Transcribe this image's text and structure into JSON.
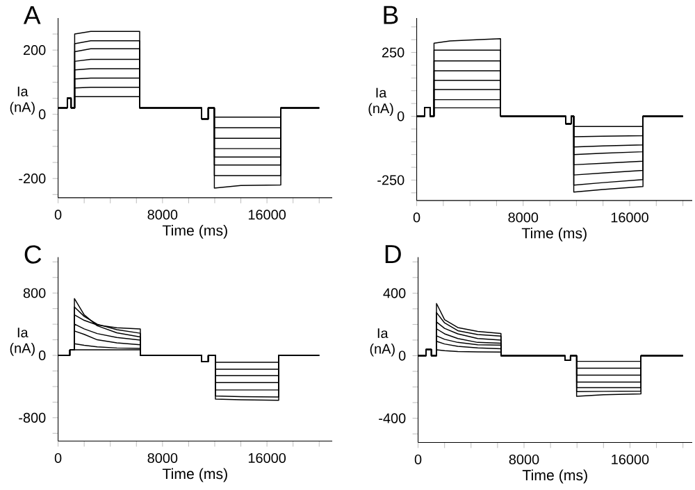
{
  "chart_data": [
    {
      "type": "line",
      "title": "A",
      "xlabel": "Time (ms)",
      "ylabel": "Ia (nA)",
      "xlim": [
        0,
        21000
      ],
      "ylim": [
        -260,
        300
      ],
      "xticks": [
        0,
        {
          "value": 2000,
          "label": null
        },
        {
          "value": 4000,
          "label": null
        },
        {
          "value": 6000,
          "label": null
        },
        8000,
        {
          "value": 10000,
          "label": null
        },
        {
          "value": 12000,
          "label": null
        },
        {
          "value": 14000,
          "label": null
        },
        16000,
        {
          "value": 18000,
          "label": null
        },
        {
          "value": 20000,
          "label": null
        }
      ],
      "yticks": [
        {
          "value": -250,
          "label": null
        },
        -200,
        {
          "value": -150,
          "label": null
        },
        {
          "value": -100,
          "label": null
        },
        {
          "value": -50,
          "label": null
        },
        0,
        {
          "value": 50,
          "label": null
        },
        {
          "value": 100,
          "label": null
        },
        {
          "value": 150,
          "label": null
        },
        200,
        {
          "value": 250,
          "label": null
        }
      ],
      "x": [
        0,
        700,
        700,
        1000,
        1000,
        1270,
        1270,
        2500,
        4500,
        6250,
        6250,
        11000,
        11000,
        11500,
        11500,
        11970,
        11970,
        14000,
        17060,
        17060,
        20000
      ],
      "series": [
        {
          "color": "#000000",
          "values": [
            20,
            20,
            50,
            50,
            20,
            20,
            250,
            258,
            258,
            258,
            20,
            20,
            -15,
            -15,
            20,
            20,
            -9,
            -9,
            -9,
            20,
            20
          ]
        },
        {
          "color": "#000000",
          "values": [
            20,
            20,
            50,
            50,
            20,
            20,
            220,
            229,
            229,
            229,
            20,
            20,
            -15,
            -15,
            20,
            20,
            -42,
            -42,
            -42,
            20,
            20
          ]
        },
        {
          "color": "#000000",
          "values": [
            20,
            20,
            50,
            50,
            20,
            20,
            195,
            204,
            204,
            204,
            20,
            20,
            -15,
            -15,
            20,
            20,
            -75,
            -75,
            -75,
            20,
            20
          ]
        },
        {
          "color": "#000000",
          "values": [
            20,
            20,
            50,
            50,
            20,
            20,
            165,
            171,
            171,
            171,
            20,
            20,
            -15,
            -15,
            20,
            20,
            -107,
            -107,
            -107,
            20,
            20
          ]
        },
        {
          "color": "#000000",
          "values": [
            20,
            20,
            50,
            50,
            20,
            20,
            138,
            142,
            142,
            142,
            20,
            20,
            -15,
            -15,
            20,
            20,
            -133,
            -133,
            -133,
            20,
            20
          ]
        },
        {
          "color": "#000000",
          "values": [
            20,
            20,
            50,
            50,
            20,
            20,
            110,
            113,
            113,
            113,
            20,
            20,
            -15,
            -15,
            20,
            20,
            -158,
            -158,
            -158,
            20,
            20
          ]
        },
        {
          "color": "#000000",
          "values": [
            20,
            20,
            50,
            50,
            20,
            20,
            82,
            84,
            84,
            84,
            20,
            20,
            -15,
            -15,
            20,
            20,
            -191,
            -191,
            -191,
            20,
            20
          ]
        },
        {
          "color": "#000000",
          "values": [
            20,
            20,
            50,
            50,
            20,
            20,
            55,
            55,
            55,
            55,
            20,
            20,
            -15,
            -15,
            20,
            20,
            -230,
            -222,
            -220,
            20,
            20
          ]
        }
      ]
    },
    {
      "type": "line",
      "title": "B",
      "xlabel": "Time (ms)",
      "ylabel": "Ia (nA)",
      "xlim": [
        0,
        20700
      ],
      "ylim": [
        -330,
        385
      ],
      "xticks": [
        0,
        {
          "value": 2000,
          "label": null
        },
        {
          "value": 4000,
          "label": null
        },
        {
          "value": 6000,
          "label": null
        },
        8000,
        {
          "value": 10000,
          "label": null
        },
        {
          "value": 12000,
          "label": null
        },
        {
          "value": 14000,
          "label": null
        },
        16000,
        {
          "value": 18000,
          "label": null
        },
        {
          "value": 20000,
          "label": null
        }
      ],
      "yticks": [
        {
          "value": -300,
          "label": null
        },
        -250,
        {
          "value": -200,
          "label": null
        },
        {
          "value": -150,
          "label": null
        },
        {
          "value": -100,
          "label": null
        },
        {
          "value": -50,
          "label": null
        },
        0,
        {
          "value": 50,
          "label": null
        },
        {
          "value": 100,
          "label": null
        },
        {
          "value": 150,
          "label": null
        },
        {
          "value": 200,
          "label": null
        },
        250,
        {
          "value": 300,
          "label": null
        },
        {
          "value": 350,
          "label": null
        }
      ],
      "x": [
        0,
        600,
        600,
        1000,
        1000,
        1300,
        1300,
        2500,
        4500,
        6300,
        6300,
        11200,
        11200,
        11600,
        11600,
        11800,
        11800,
        14000,
        17000,
        17000,
        20000
      ],
      "series": [
        {
          "color": "#000000",
          "values": [
            0,
            0,
            35,
            35,
            0,
            0,
            286,
            295,
            300,
            304,
            0,
            0,
            -30,
            -30,
            0,
            0,
            -40,
            -40,
            -40,
            0,
            0
          ]
        },
        {
          "color": "#000000",
          "values": [
            0,
            0,
            35,
            35,
            0,
            0,
            259,
            259,
            259,
            259,
            0,
            0,
            -30,
            -30,
            0,
            0,
            -80,
            -78,
            -76,
            0,
            0
          ]
        },
        {
          "color": "#000000",
          "values": [
            0,
            0,
            35,
            35,
            0,
            0,
            217,
            217,
            217,
            217,
            0,
            0,
            -30,
            -30,
            0,
            0,
            -120,
            -116,
            -112,
            0,
            0
          ]
        },
        {
          "color": "#000000",
          "values": [
            0,
            0,
            35,
            35,
            0,
            0,
            178,
            178,
            178,
            178,
            0,
            0,
            -30,
            -30,
            0,
            0,
            -150,
            -145,
            -139,
            0,
            0
          ]
        },
        {
          "color": "#000000",
          "values": [
            0,
            0,
            35,
            35,
            0,
            0,
            141,
            141,
            141,
            141,
            0,
            0,
            -30,
            -30,
            0,
            0,
            -190,
            -184,
            -176,
            0,
            0
          ]
        },
        {
          "color": "#000000",
          "values": [
            0,
            0,
            35,
            35,
            0,
            0,
            105,
            105,
            105,
            105,
            0,
            0,
            -30,
            -30,
            0,
            0,
            -230,
            -222,
            -212,
            0,
            0
          ]
        },
        {
          "color": "#000000",
          "values": [
            0,
            0,
            35,
            35,
            0,
            0,
            65,
            65,
            65,
            65,
            0,
            0,
            -30,
            -30,
            0,
            0,
            -270,
            -260,
            -248,
            0,
            0
          ]
        },
        {
          "color": "#000000",
          "values": [
            0,
            0,
            35,
            35,
            0,
            0,
            33,
            33,
            33,
            33,
            0,
            0,
            -30,
            -30,
            0,
            0,
            -297,
            -287,
            -275,
            0,
            0
          ]
        }
      ]
    },
    {
      "type": "line",
      "title": "C",
      "xlabel": "Time (ms)",
      "ylabel": "Ia (nA)",
      "xlim": [
        0,
        21000
      ],
      "ylim": [
        -1100,
        1260
      ],
      "xticks": [
        0,
        {
          "value": 2000,
          "label": null
        },
        {
          "value": 4000,
          "label": null
        },
        {
          "value": 6000,
          "label": null
        },
        8000,
        {
          "value": 10000,
          "label": null
        },
        {
          "value": 12000,
          "label": null
        },
        {
          "value": 14000,
          "label": null
        },
        16000,
        {
          "value": 18000,
          "label": null
        },
        {
          "value": 20000,
          "label": null
        }
      ],
      "yticks": [
        {
          "value": -1000,
          "label": null
        },
        -800,
        {
          "value": -600,
          "label": null
        },
        {
          "value": -400,
          "label": null
        },
        {
          "value": -200,
          "label": null
        },
        0,
        {
          "value": 200,
          "label": null
        },
        {
          "value": 400,
          "label": null
        },
        {
          "value": 600,
          "label": null
        },
        800,
        {
          "value": 1000,
          "label": null
        },
        {
          "value": 1200,
          "label": null
        }
      ],
      "x": [
        0,
        900,
        900,
        1250,
        1250,
        2000,
        3000,
        4500,
        6300,
        6300,
        11000,
        11000,
        11500,
        11500,
        12050,
        12050,
        14000,
        16900,
        16900,
        20000
      ],
      "series": [
        {
          "color": "#000000",
          "values": [
            0,
            0,
            70,
            70,
            729,
            520,
            380,
            290,
            236,
            0,
            0,
            -80,
            -80,
            0,
            0,
            -89,
            -89,
            -89,
            0,
            0
          ]
        },
        {
          "color": "#000000",
          "values": [
            0,
            0,
            70,
            70,
            622,
            500,
            400,
            330,
            284,
            0,
            0,
            -80,
            -80,
            0,
            0,
            -178,
            -178,
            -178,
            0,
            0
          ]
        },
        {
          "color": "#000000",
          "values": [
            0,
            0,
            70,
            70,
            521,
            450,
            390,
            355,
            338,
            0,
            0,
            -80,
            -80,
            0,
            0,
            -261,
            -261,
            -261,
            0,
            0
          ]
        },
        {
          "color": "#000000",
          "values": [
            0,
            0,
            70,
            70,
            402,
            340,
            280,
            230,
            196,
            0,
            0,
            -80,
            -80,
            0,
            0,
            -350,
            -350,
            -350,
            0,
            0
          ]
        },
        {
          "color": "#000000",
          "values": [
            0,
            0,
            70,
            70,
            313,
            270,
            200,
            160,
            136,
            0,
            0,
            -80,
            -80,
            0,
            0,
            -444,
            -444,
            -444,
            0,
            0
          ]
        },
        {
          "color": "#000000",
          "values": [
            0,
            0,
            70,
            70,
            150,
            130,
            110,
            95,
            90,
            0,
            0,
            -80,
            -80,
            0,
            0,
            -520,
            -530,
            -535,
            0,
            0
          ]
        },
        {
          "color": "#000000",
          "values": [
            0,
            0,
            70,
            70,
            71,
            71,
            71,
            71,
            71,
            0,
            0,
            -80,
            -80,
            0,
            0,
            -560,
            -570,
            -576,
            0,
            0
          ]
        }
      ]
    },
    {
      "type": "line",
      "title": "D",
      "xlabel": "Time (ms)",
      "ylabel": "Ia (nA)",
      "xlim": [
        0,
        20700
      ],
      "ylim": [
        -555,
        630
      ],
      "xticks": [
        0,
        {
          "value": 2000,
          "label": null
        },
        {
          "value": 4000,
          "label": null
        },
        {
          "value": 6000,
          "label": null
        },
        8000,
        {
          "value": 10000,
          "label": null
        },
        {
          "value": 12000,
          "label": null
        },
        {
          "value": 14000,
          "label": null
        },
        16000,
        {
          "value": 18000,
          "label": null
        },
        {
          "value": 20000,
          "label": null
        }
      ],
      "yticks": [
        {
          "value": -500,
          "label": null
        },
        -400,
        {
          "value": -300,
          "label": null
        },
        {
          "value": -200,
          "label": null
        },
        {
          "value": -100,
          "label": null
        },
        0,
        {
          "value": 100,
          "label": null
        },
        {
          "value": 200,
          "label": null
        },
        {
          "value": 300,
          "label": null
        },
        400,
        {
          "value": 500,
          "label": null
        },
        {
          "value": 600,
          "label": null
        }
      ],
      "x": [
        0,
        600,
        600,
        1000,
        1000,
        1390,
        1390,
        2000,
        3000,
        4500,
        6260,
        6260,
        11100,
        11100,
        11500,
        11500,
        11970,
        11970,
        14000,
        16830,
        16830,
        20000
      ],
      "series": [
        {
          "color": "#000000",
          "values": [
            0,
            0,
            40,
            40,
            0,
            0,
            334,
            230,
            180,
            155,
            142,
            0,
            0,
            -30,
            -30,
            0,
            0,
            -36,
            -36,
            -36,
            0,
            0
          ]
        },
        {
          "color": "#000000",
          "values": [
            0,
            0,
            40,
            40,
            0,
            0,
            276,
            210,
            160,
            135,
            125,
            0,
            0,
            -30,
            -30,
            0,
            0,
            -80,
            -80,
            -80,
            0,
            0
          ]
        },
        {
          "color": "#000000",
          "values": [
            0,
            0,
            40,
            40,
            0,
            0,
            216,
            175,
            140,
            110,
            100,
            0,
            0,
            -30,
            -30,
            0,
            0,
            -124,
            -124,
            -124,
            0,
            0
          ]
        },
        {
          "color": "#000000",
          "values": [
            0,
            0,
            40,
            40,
            0,
            0,
            172,
            140,
            110,
            85,
            80,
            0,
            0,
            -30,
            -30,
            0,
            0,
            -169,
            -169,
            -169,
            0,
            0
          ]
        },
        {
          "color": "#000000",
          "values": [
            0,
            0,
            40,
            40,
            0,
            0,
            127,
            105,
            85,
            70,
            68,
            0,
            0,
            -30,
            -30,
            0,
            0,
            -204,
            -204,
            -204,
            0,
            0
          ]
        },
        {
          "color": "#000000",
          "values": [
            0,
            0,
            40,
            40,
            0,
            0,
            92,
            75,
            60,
            50,
            44,
            0,
            0,
            -30,
            -30,
            0,
            0,
            -230,
            -228,
            -226,
            0,
            0
          ]
        },
        {
          "color": "#000000",
          "values": [
            0,
            0,
            40,
            40,
            0,
            0,
            38,
            32,
            27,
            24,
            23,
            0,
            0,
            -30,
            -30,
            0,
            0,
            -260,
            -250,
            -244,
            0,
            0
          ]
        }
      ]
    }
  ]
}
